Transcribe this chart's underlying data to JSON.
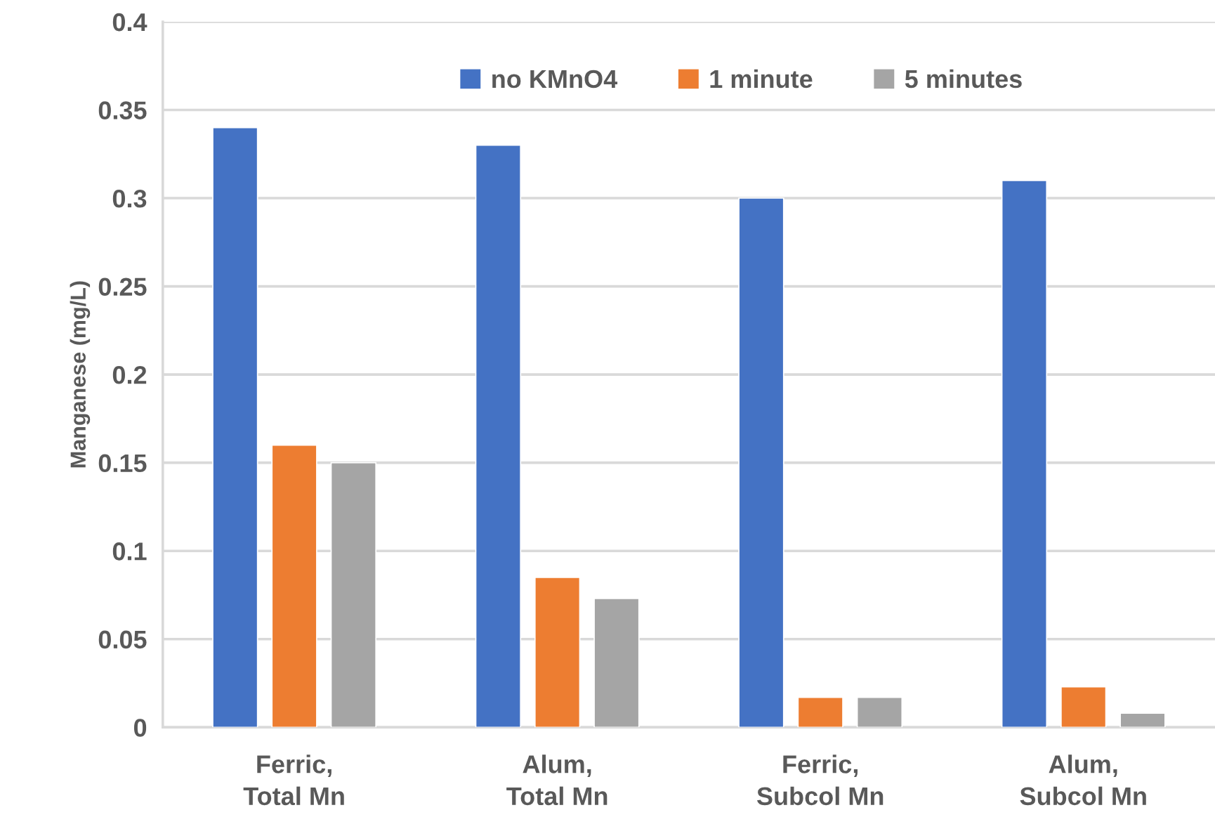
{
  "chart_data": {
    "type": "bar",
    "ylabel": "Manganese (mg/L)",
    "categories": [
      "Ferric,\nTotal Mn",
      "Alum,\nTotal Mn",
      "Ferric,\nSubcol Mn",
      "Alum,\nSubcol Mn"
    ],
    "series": [
      {
        "name": "no KMnO4",
        "color": "#4472c4",
        "values": [
          0.34,
          0.33,
          0.3,
          0.31
        ]
      },
      {
        "name": "1 minute",
        "color": "#ed7d31",
        "values": [
          0.16,
          0.085,
          0.017,
          0.023
        ]
      },
      {
        "name": "5 minutes",
        "color": "#a5a5a5",
        "values": [
          0.15,
          0.073,
          0.017,
          0.008
        ]
      }
    ],
    "ylim": [
      0,
      0.4
    ],
    "yticks": [
      0,
      0.05,
      0.1,
      0.15,
      0.2,
      0.25,
      0.3,
      0.35,
      0.4
    ],
    "grid": "y",
    "legend": "top"
  }
}
